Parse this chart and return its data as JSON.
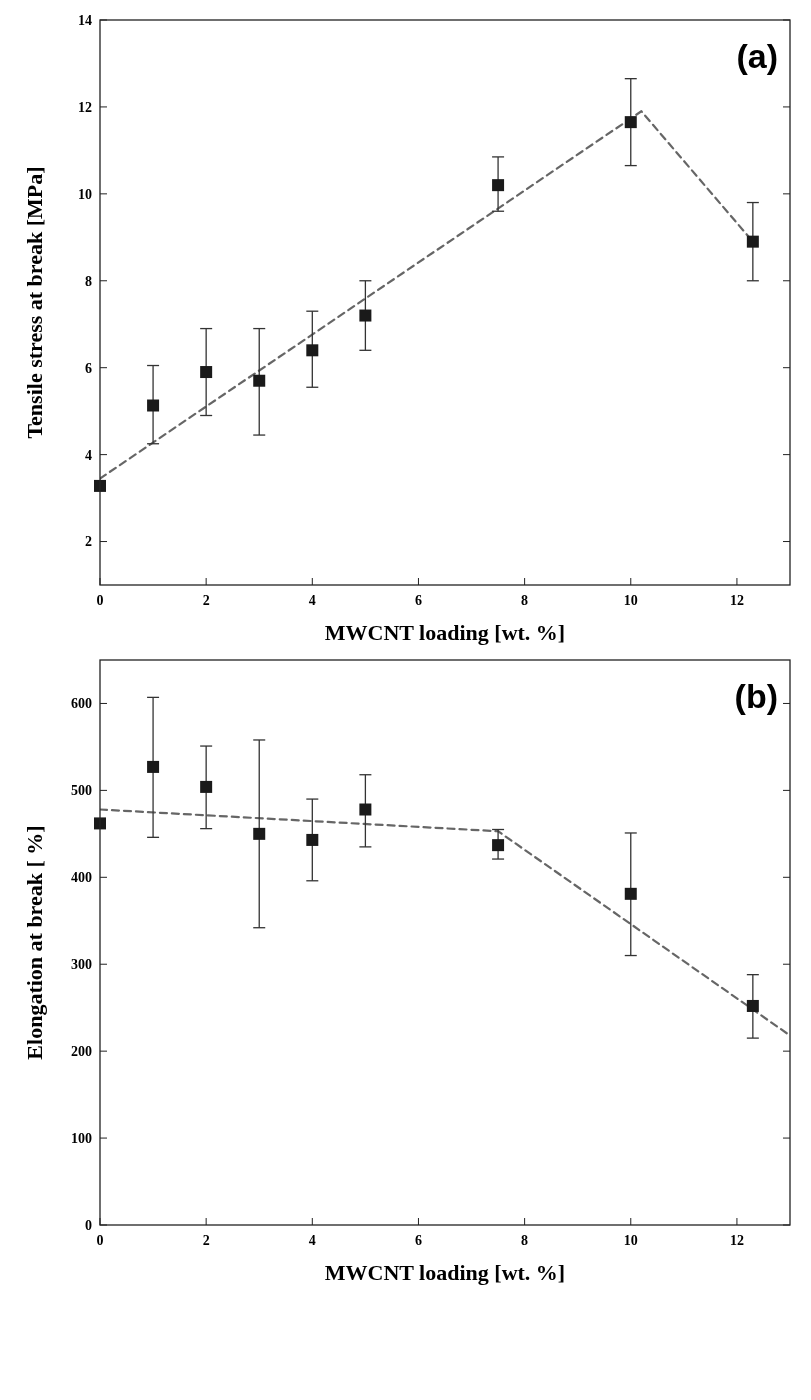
{
  "chart_data": [
    {
      "type": "scatter",
      "xlabel": "MWCNT loading [wt. %]",
      "ylabel": "Tensile stress at break [MPa]",
      "annotations": [
        "(a)"
      ],
      "xlim": [
        0,
        13
      ],
      "ylim": [
        1,
        14
      ],
      "xticks": [
        0,
        2,
        4,
        6,
        8,
        10,
        12
      ],
      "yticks": [
        2,
        4,
        6,
        8,
        10,
        12,
        14
      ],
      "series": [
        {
          "color": "#1a1a1a",
          "marker": "square",
          "x": [
            0,
            1,
            2,
            3,
            4,
            5,
            7.5,
            10,
            12.3
          ],
          "values": [
            3.28,
            5.13,
            5.9,
            5.7,
            6.4,
            7.2,
            10.2,
            11.65,
            8.9
          ],
          "errors": [
            null,
            [
              4.25,
              6.05
            ],
            [
              4.9,
              6.9
            ],
            [
              4.45,
              6.9
            ],
            [
              5.55,
              7.3
            ],
            [
              6.4,
              8.0
            ],
            [
              9.6,
              10.85
            ],
            [
              10.65,
              12.65
            ],
            [
              8.0,
              9.8
            ]
          ]
        },
        {
          "type": "line",
          "color": "#666666",
          "marker": "none",
          "line_style": "dashed",
          "x": [
            0,
            10.2,
            12.3
          ],
          "values": [
            3.45,
            11.9,
            8.9
          ]
        }
      ]
    },
    {
      "type": "scatter",
      "xlabel": "MWCNT loading [wt. %]",
      "ylabel": "Elongation at break [ %]",
      "annotations": [
        "(b)"
      ],
      "xlim": [
        0,
        13
      ],
      "ylim": [
        0,
        650
      ],
      "xticks": [
        0,
        2,
        4,
        6,
        8,
        10,
        12
      ],
      "yticks": [
        0,
        100,
        200,
        300,
        400,
        500,
        600
      ],
      "series": [
        {
          "color": "#1a1a1a",
          "marker": "square",
          "x": [
            0,
            1,
            2,
            3,
            4,
            5,
            7.5,
            10,
            12.3
          ],
          "values": [
            462,
            527,
            504,
            450,
            443,
            478,
            437,
            381,
            252
          ],
          "errors": [
            null,
            [
              446,
              607
            ],
            [
              456,
              551
            ],
            [
              342,
              558
            ],
            [
              396,
              490
            ],
            [
              435,
              518
            ],
            [
              421,
              455
            ],
            [
              310,
              451
            ],
            [
              215,
              288
            ]
          ]
        },
        {
          "type": "line",
          "color": "#666666",
          "marker": "none",
          "line_style": "dashed",
          "x": [
            0,
            7.5,
            13
          ],
          "values": [
            478,
            453,
            218
          ]
        }
      ]
    }
  ]
}
